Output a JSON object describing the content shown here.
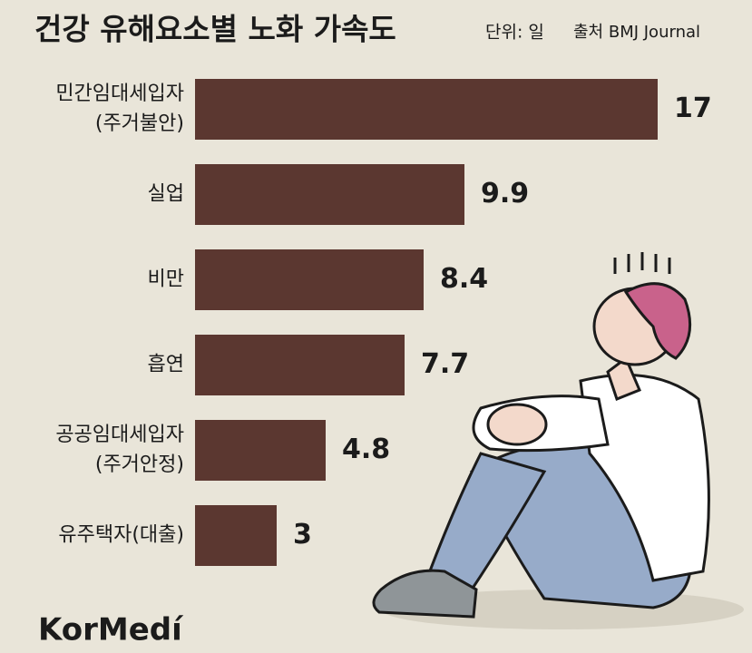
{
  "chart_data": {
    "type": "bar",
    "orientation": "horizontal",
    "title": "건강 유해요소별 노화 가속도",
    "unit": "단위: 일",
    "source": "출처 BMJ Journal",
    "categories": [
      "민간임대세입자\n(주거불안)",
      "실업",
      "비만",
      "흡연",
      "공공임대세입자\n(주거안정)",
      "유주택자(대출)"
    ],
    "values": [
      17,
      9.9,
      8.4,
      7.7,
      4.8,
      3
    ],
    "color": "#5b3730",
    "logo": "KorMedí"
  }
}
